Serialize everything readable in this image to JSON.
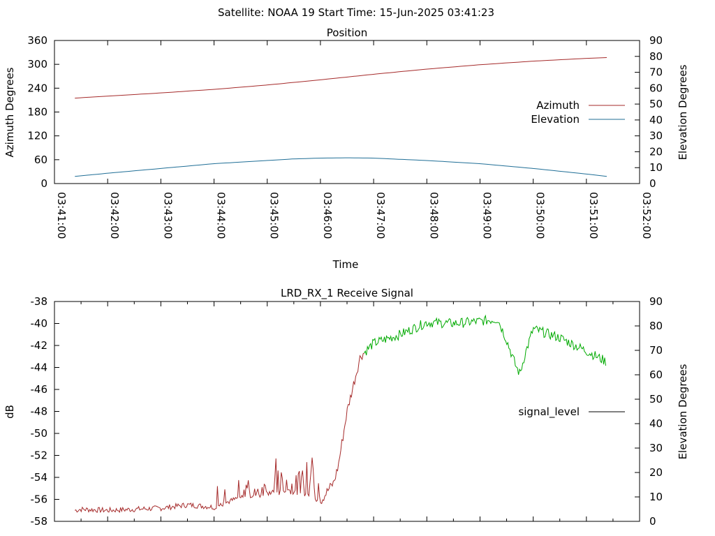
{
  "header": {
    "title": "Satellite: NOAA 19    Start Time: 15-Jun-2025 03:41:23"
  },
  "chart_data": [
    {
      "type": "line",
      "title": "Position",
      "xlabel": "Time",
      "ylabel": "Azimuth Degrees",
      "y2label": "Elevation Degrees",
      "x_ticks": [
        "03:41:00",
        "03:42:00",
        "03:43:00",
        "03:44:00",
        "03:45:00",
        "03:46:00",
        "03:47:00",
        "03:48:00",
        "03:49:00",
        "03:50:00",
        "03:51:00",
        "03:52:00"
      ],
      "xlim": [
        "03:41:00",
        "03:52:00"
      ],
      "ylim": [
        0,
        360
      ],
      "y_ticks": [
        "0",
        "60",
        "120",
        "180",
        "240",
        "300",
        "360"
      ],
      "y2lim": [
        0,
        90
      ],
      "y2_ticks": [
        "0",
        "10",
        "20",
        "30",
        "40",
        "50",
        "60",
        "70",
        "80",
        "90"
      ],
      "legend_position": "right",
      "grid": false,
      "series": [
        {
          "name": "Azimuth",
          "axis": "y",
          "color": "#a52a2a",
          "x": [
            "03:41:23",
            "03:42:00",
            "03:43:00",
            "03:44:00",
            "03:45:00",
            "03:46:00",
            "03:47:00",
            "03:48:00",
            "03:49:00",
            "03:50:00",
            "03:51:00",
            "03:51:23"
          ],
          "y": [
            215,
            220,
            228,
            237,
            248,
            261,
            275,
            288,
            299,
            308,
            315,
            317
          ]
        },
        {
          "name": "Elevation",
          "axis": "y2",
          "color": "#1f6e96",
          "x": [
            "03:41:23",
            "03:42:00",
            "03:43:00",
            "03:44:00",
            "03:45:00",
            "03:45:30",
            "03:46:00",
            "03:46:30",
            "03:47:00",
            "03:48:00",
            "03:49:00",
            "03:50:00",
            "03:51:00",
            "03:51:23"
          ],
          "y": [
            4.5,
            6.5,
            9.5,
            12.5,
            14.5,
            15.5,
            16,
            16.2,
            16,
            14.5,
            12.5,
            9.5,
            6,
            4.5
          ]
        }
      ]
    },
    {
      "type": "line",
      "title": "LRD_RX_1 Receive Signal",
      "xlabel": "",
      "ylabel": "dB",
      "y2label": "Elevation Degrees",
      "xlim": [
        "03:41:00",
        "03:52:00"
      ],
      "ylim": [
        -58,
        -38
      ],
      "y_ticks": [
        "-58",
        "-56",
        "-54",
        "-52",
        "-50",
        "-48",
        "-46",
        "-44",
        "-42",
        "-40",
        "-38"
      ],
      "y2lim": [
        0,
        90
      ],
      "y2_ticks": [
        "0",
        "10",
        "20",
        "30",
        "40",
        "50",
        "60",
        "70",
        "80",
        "90"
      ],
      "legend_position": "right",
      "grid": false,
      "series": [
        {
          "name": "signal_level",
          "axis": "y",
          "color": "#000000",
          "segment_colors": [
            "#a52a2a",
            "#00aa00"
          ],
          "color_change_at": "03:46:00",
          "x": [
            "03:41:23",
            "03:41:30",
            "03:42:00",
            "03:42:30",
            "03:43:00",
            "03:43:30",
            "03:44:00",
            "03:44:30",
            "03:45:00",
            "03:45:30",
            "03:46:00",
            "03:46:10",
            "03:46:15",
            "03:46:20",
            "03:46:30",
            "03:46:45",
            "03:47:00",
            "03:47:30",
            "03:48:00",
            "03:48:30",
            "03:49:00",
            "03:49:20",
            "03:49:30",
            "03:49:40",
            "03:49:45",
            "03:49:50",
            "03:50:00",
            "03:50:30",
            "03:51:00",
            "03:51:23"
          ],
          "y": [
            -57.0,
            -56.9,
            -57.0,
            -56.9,
            -56.8,
            -56.5,
            -56.7,
            -55.8,
            -55.5,
            -55.3,
            -56.2,
            -55.0,
            -54.5,
            -53.0,
            -48.0,
            -43.0,
            -41.8,
            -41.0,
            -39.9,
            -40.0,
            -39.8,
            -39.6,
            -41.5,
            -43.8,
            -44.6,
            -43.0,
            -40.5,
            -41.3,
            -42.5,
            -43.5
          ]
        }
      ],
      "noise_spikes": [
        {
          "from": "03:44:00",
          "to": "03:45:00",
          "peak": -54.2
        },
        {
          "from": "03:45:00",
          "to": "03:46:00",
          "peak": -52.0
        }
      ]
    }
  ]
}
